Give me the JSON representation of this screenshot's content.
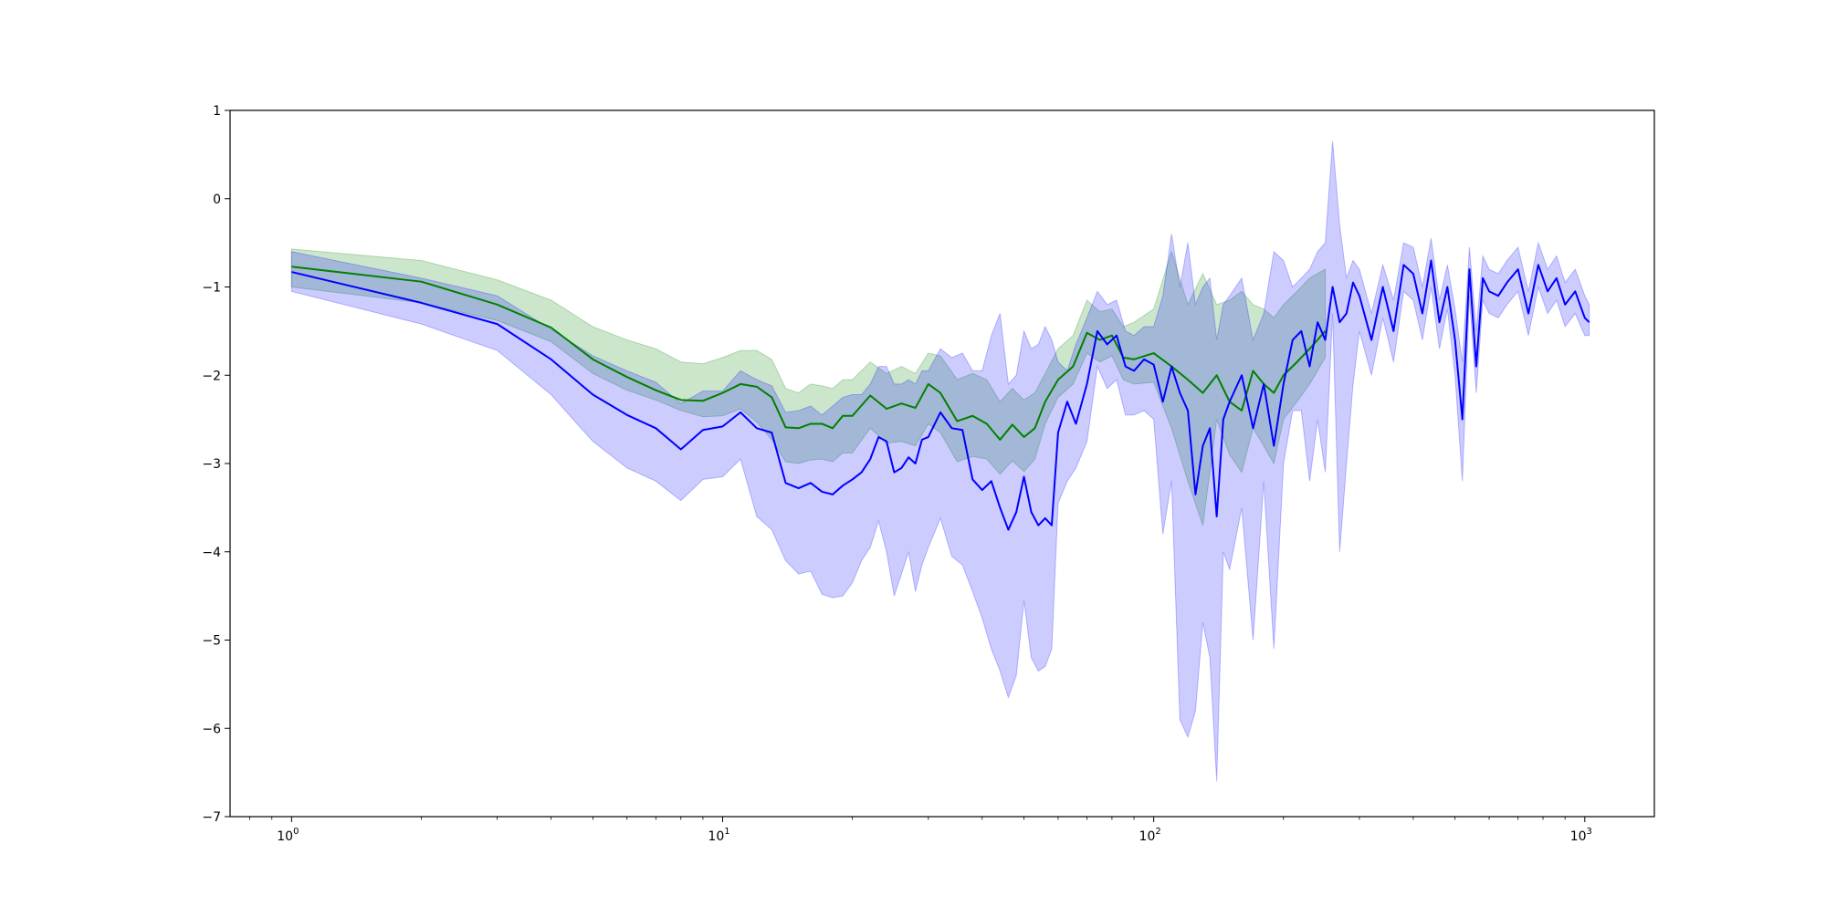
{
  "chart_data": {
    "type": "line",
    "title": "",
    "xlabel": "",
    "ylabel": "",
    "xscale": "log",
    "xlim": [
      0.72,
      1450
    ],
    "ylim": [
      -7,
      1
    ],
    "grid": false,
    "legend": "none",
    "x_ticks": [
      {
        "value": 1,
        "base": "10",
        "exp": "0"
      },
      {
        "value": 10,
        "base": "10",
        "exp": "1"
      },
      {
        "value": 100,
        "base": "10",
        "exp": "2"
      },
      {
        "value": 1000,
        "base": "10",
        "exp": "3"
      }
    ],
    "y_ticks": [
      {
        "value": 1,
        "label": "1"
      },
      {
        "value": 0,
        "label": "0"
      },
      {
        "value": -1,
        "label": "−1"
      },
      {
        "value": -2,
        "label": "−2"
      },
      {
        "value": -3,
        "label": "−3"
      },
      {
        "value": -4,
        "label": "−4"
      },
      {
        "value": -5,
        "label": "−5"
      },
      {
        "value": -6,
        "label": "−6"
      },
      {
        "value": -7,
        "label": "−7"
      }
    ],
    "series": [
      {
        "color": "#008000",
        "band_color": "#008000",
        "band_opacity": 0.2,
        "x": [
          1,
          2,
          3,
          4,
          5,
          6,
          7,
          8,
          9,
          10,
          11,
          12,
          13,
          14,
          15,
          16,
          17,
          18,
          19,
          20,
          22,
          24,
          26,
          28,
          30,
          32,
          35,
          38,
          41,
          44,
          47,
          50,
          53,
          56,
          60,
          65,
          70,
          75,
          80,
          85,
          90,
          100,
          110,
          120,
          130,
          140,
          150,
          160,
          170,
          180,
          190,
          200,
          215,
          230,
          250
        ],
        "y": [
          -0.77,
          -0.94,
          -1.2,
          -1.46,
          -1.82,
          -2.02,
          -2.17,
          -2.28,
          -2.29,
          -2.2,
          -2.1,
          -2.13,
          -2.25,
          -2.59,
          -2.6,
          -2.55,
          -2.55,
          -2.6,
          -2.46,
          -2.46,
          -2.23,
          -2.38,
          -2.32,
          -2.37,
          -2.1,
          -2.2,
          -2.52,
          -2.46,
          -2.55,
          -2.73,
          -2.56,
          -2.7,
          -2.6,
          -2.3,
          -2.05,
          -1.9,
          -1.52,
          -1.6,
          -1.55,
          -1.8,
          -1.82,
          -1.75,
          -1.9,
          -2.05,
          -2.2,
          -2.0,
          -2.3,
          -2.4,
          -1.95,
          -2.1,
          -2.2,
          -2.0,
          -1.85,
          -1.7,
          -1.5
        ],
        "lower": [
          -1.0,
          -1.18,
          -1.38,
          -1.62,
          -1.98,
          -2.17,
          -2.28,
          -2.4,
          -2.47,
          -2.46,
          -2.38,
          -2.53,
          -2.73,
          -2.98,
          -3.0,
          -2.96,
          -2.95,
          -2.98,
          -2.88,
          -2.88,
          -2.6,
          -2.77,
          -2.75,
          -2.8,
          -2.55,
          -2.65,
          -2.98,
          -2.92,
          -2.95,
          -3.12,
          -2.97,
          -3.09,
          -2.95,
          -2.55,
          -2.25,
          -2.1,
          -1.75,
          -1.85,
          -1.78,
          -2.05,
          -2.1,
          -2.08,
          -2.6,
          -3.2,
          -3.7,
          -2.5,
          -2.9,
          -3.1,
          -2.6,
          -2.8,
          -3.0,
          -2.5,
          -2.3,
          -2.1,
          -1.8
        ],
        "upper": [
          -0.57,
          -0.7,
          -0.92,
          -1.15,
          -1.45,
          -1.6,
          -1.7,
          -1.85,
          -1.87,
          -1.8,
          -1.72,
          -1.72,
          -1.82,
          -2.15,
          -2.2,
          -2.1,
          -2.12,
          -2.15,
          -2.05,
          -2.05,
          -1.85,
          -1.98,
          -1.9,
          -1.98,
          -1.75,
          -1.78,
          -2.05,
          -1.98,
          -2.05,
          -2.3,
          -2.15,
          -2.28,
          -2.2,
          -1.98,
          -1.7,
          -1.55,
          -1.15,
          -1.28,
          -1.25,
          -1.45,
          -1.4,
          -1.25,
          -0.6,
          -1.2,
          -0.85,
          -1.2,
          -1.15,
          -1.05,
          -1.2,
          -1.25,
          -1.35,
          -1.2,
          -1.05,
          -0.9,
          -0.8
        ]
      },
      {
        "color": "#0000ff",
        "band_color": "#0000ff",
        "band_opacity": 0.2,
        "x": [
          1,
          2,
          3,
          4,
          5,
          6,
          7,
          8,
          9,
          10,
          11,
          12,
          13,
          14,
          15,
          16,
          17,
          18,
          19,
          20,
          21,
          22,
          23,
          24,
          25,
          26,
          27,
          28,
          29,
          30,
          32,
          34,
          36,
          38,
          40,
          42,
          44,
          46,
          48,
          50,
          52,
          54,
          56,
          58,
          60,
          63,
          66,
          70,
          74,
          78,
          82,
          86,
          90,
          95,
          100,
          105,
          110,
          115,
          120,
          125,
          130,
          135,
          140,
          145,
          150,
          160,
          170,
          180,
          190,
          200,
          210,
          220,
          230,
          240,
          250,
          260,
          270,
          280,
          290,
          300,
          320,
          340,
          360,
          380,
          400,
          420,
          440,
          460,
          480,
          500,
          520,
          540,
          560,
          580,
          600,
          630,
          660,
          700,
          740,
          780,
          820,
          860,
          900,
          950,
          1000,
          1024
        ],
        "y": [
          -0.83,
          -1.18,
          -1.42,
          -1.82,
          -2.22,
          -2.45,
          -2.6,
          -2.84,
          -2.62,
          -2.58,
          -2.42,
          -2.6,
          -2.65,
          -3.22,
          -3.28,
          -3.22,
          -3.32,
          -3.35,
          -3.25,
          -3.18,
          -3.1,
          -2.95,
          -2.7,
          -2.75,
          -3.1,
          -3.05,
          -2.93,
          -3.0,
          -2.73,
          -2.7,
          -2.42,
          -2.6,
          -2.62,
          -3.18,
          -3.3,
          -3.2,
          -3.5,
          -3.75,
          -3.55,
          -3.15,
          -3.55,
          -3.7,
          -3.62,
          -3.7,
          -2.65,
          -2.3,
          -2.55,
          -2.1,
          -1.5,
          -1.65,
          -1.55,
          -1.9,
          -1.95,
          -1.82,
          -1.88,
          -2.3,
          -1.9,
          -2.2,
          -2.4,
          -3.35,
          -2.8,
          -2.6,
          -3.6,
          -2.5,
          -2.3,
          -2.0,
          -2.6,
          -2.1,
          -2.8,
          -2.1,
          -1.6,
          -1.5,
          -1.9,
          -1.4,
          -1.6,
          -1.0,
          -1.4,
          -1.3,
          -0.95,
          -1.1,
          -1.6,
          -1.0,
          -1.5,
          -0.75,
          -0.85,
          -1.3,
          -0.7,
          -1.4,
          -1.0,
          -1.6,
          -2.5,
          -0.8,
          -1.9,
          -0.9,
          -1.05,
          -1.1,
          -0.95,
          -0.8,
          -1.3,
          -0.75,
          -1.05,
          -0.9,
          -1.2,
          -1.05,
          -1.35,
          -1.4
        ],
        "lower": [
          -1.05,
          -1.42,
          -1.72,
          -2.22,
          -2.75,
          -3.05,
          -3.2,
          -3.42,
          -3.18,
          -3.15,
          -2.95,
          -3.6,
          -3.75,
          -4.1,
          -4.25,
          -4.22,
          -4.48,
          -4.52,
          -4.5,
          -4.35,
          -4.1,
          -3.95,
          -3.65,
          -4.0,
          -4.5,
          -4.25,
          -4.0,
          -4.45,
          -4.15,
          -3.95,
          -3.62,
          -4.05,
          -4.15,
          -4.45,
          -4.75,
          -5.1,
          -5.35,
          -5.65,
          -5.4,
          -4.55,
          -5.2,
          -5.35,
          -5.3,
          -5.1,
          -3.45,
          -3.2,
          -3.05,
          -2.75,
          -1.9,
          -2.15,
          -2.05,
          -2.45,
          -2.45,
          -2.4,
          -2.5,
          -3.8,
          -3.2,
          -5.9,
          -6.1,
          -5.8,
          -4.8,
          -5.2,
          -6.6,
          -4.0,
          -4.2,
          -3.5,
          -5.0,
          -3.2,
          -5.1,
          -3.0,
          -2.4,
          -2.4,
          -3.2,
          -2.5,
          -3.1,
          -1.3,
          -4.0,
          -3.0,
          -2.1,
          -1.5,
          -2.0,
          -1.35,
          -1.85,
          -1.05,
          -1.15,
          -1.6,
          -1.0,
          -1.7,
          -1.25,
          -2.0,
          -3.2,
          -1.1,
          -2.2,
          -1.15,
          -1.3,
          -1.35,
          -1.2,
          -1.05,
          -1.55,
          -1.0,
          -1.3,
          -1.15,
          -1.45,
          -1.3,
          -1.55,
          -1.55
        ],
        "upper": [
          -0.6,
          -0.9,
          -1.1,
          -1.48,
          -1.78,
          -1.95,
          -2.08,
          -2.32,
          -2.18,
          -2.18,
          -1.95,
          -2.05,
          -2.12,
          -2.42,
          -2.4,
          -2.35,
          -2.45,
          -2.35,
          -2.25,
          -2.22,
          -2.22,
          -2.1,
          -1.9,
          -1.9,
          -2.1,
          -2.1,
          -2.05,
          -2.1,
          -1.95,
          -1.95,
          -1.7,
          -1.8,
          -1.75,
          -1.95,
          -1.95,
          -1.55,
          -1.3,
          -2.1,
          -2.0,
          -1.5,
          -1.7,
          -1.65,
          -1.45,
          -1.6,
          -1.85,
          -1.95,
          -1.65,
          -1.35,
          -1.05,
          -1.2,
          -1.15,
          -1.5,
          -1.55,
          -1.45,
          -1.45,
          -1.1,
          -0.4,
          -1.0,
          -0.5,
          -1.2,
          -1.0,
          -0.9,
          -1.6,
          -1.2,
          -1.1,
          -0.9,
          -1.6,
          -1.3,
          -0.6,
          -0.7,
          -1.0,
          -0.9,
          -0.8,
          -0.6,
          -0.5,
          0.65,
          -0.3,
          -0.9,
          -0.7,
          -0.8,
          -1.3,
          -0.75,
          -1.15,
          -0.5,
          -0.55,
          -1.0,
          -0.45,
          -1.15,
          -0.75,
          -1.25,
          -1.85,
          -0.55,
          -1.5,
          -0.65,
          -0.8,
          -0.85,
          -0.7,
          -0.55,
          -1.05,
          -0.5,
          -0.8,
          -0.65,
          -0.95,
          -0.8,
          -1.1,
          -1.2
        ]
      }
    ]
  }
}
